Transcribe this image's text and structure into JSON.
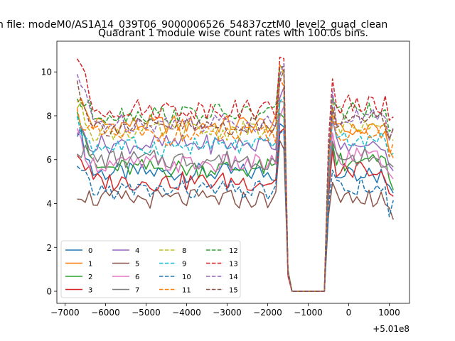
{
  "chart_data": {
    "type": "line",
    "suptitle": "n file: modeM0/AS1A14_039T06_9000006526_54837cztM0_level2_quad_clean",
    "title": "Quadrant 1 module wise count rates with 100.0s bins.",
    "xlabel": "",
    "ylabel": "",
    "offset_label": "+5.01e8",
    "xlim": [
      -7200,
      1500
    ],
    "ylim": [
      -0.55,
      11.4
    ],
    "xticks": [
      -7000,
      -6000,
      -5000,
      -4000,
      -3000,
      -2000,
      -1000,
      0,
      1000
    ],
    "xtick_labels": [
      "−7000",
      "−6000",
      "−5000",
      "−4000",
      "−3000",
      "−2000",
      "−1000",
      "0",
      "1000"
    ],
    "yticks": [
      0,
      2,
      4,
      6,
      8,
      10
    ],
    "ytick_labels": [
      "0",
      "2",
      "4",
      "6",
      "8",
      "10"
    ],
    "grid": false,
    "legend_position": "lower-left",
    "legend_columns": 4,
    "segments": {
      "first": {
        "start": -6700,
        "end": -1600,
        "step": 100
      },
      "gap_edge": [
        -1500,
        -1400
      ],
      "gap_zero": [
        -1400,
        -600
      ],
      "gap_rise": [
        -500
      ],
      "second": {
        "start": -400,
        "end": 1050,
        "step": 100
      }
    },
    "series": [
      {
        "name": "0",
        "color": "#1f77b4",
        "dash": "solid",
        "level": 5.4,
        "second_level": 5.3,
        "start": 7.5,
        "end": 4.8
      },
      {
        "name": "1",
        "color": "#ff7f0e",
        "dash": "solid",
        "level": 7.6,
        "second_level": 7.4,
        "start": 8.9,
        "end": 6.0
      },
      {
        "name": "2",
        "color": "#2ca02c",
        "dash": "solid",
        "level": 5.6,
        "second_level": 5.9,
        "start": 8.6,
        "end": 4.7
      },
      {
        "name": "3",
        "color": "#d62728",
        "dash": "solid",
        "level": 5.0,
        "second_level": 5.5,
        "start": 6.4,
        "end": 4.4
      },
      {
        "name": "4",
        "color": "#9467bd",
        "dash": "solid",
        "level": 6.7,
        "second_level": 6.8,
        "start": 7.4,
        "end": 5.6
      },
      {
        "name": "5",
        "color": "#8c564b",
        "dash": "solid",
        "level": 4.2,
        "second_level": 4.3,
        "start": 4.6,
        "end": 3.7
      },
      {
        "name": "6",
        "color": "#e377c2",
        "dash": "solid",
        "level": 5.8,
        "second_level": 6.1,
        "start": 7.0,
        "end": 5.3
      },
      {
        "name": "7",
        "color": "#7f7f7f",
        "dash": "solid",
        "level": 6.0,
        "second_level": 6.1,
        "start": 6.6,
        "end": 5.5
      },
      {
        "name": "8",
        "color": "#bcbd22",
        "dash": "dashed",
        "level": 7.3,
        "second_level": 7.5,
        "start": 8.5,
        "end": 6.7
      },
      {
        "name": "9",
        "color": "#17becf",
        "dash": "dashed",
        "level": 6.6,
        "second_level": 6.8,
        "start": 7.6,
        "end": 6.1
      },
      {
        "name": "10",
        "color": "#1f77b4",
        "dash": "dashed",
        "level": 4.6,
        "second_level": 4.8,
        "start": 5.5,
        "end": 3.8
      },
      {
        "name": "11",
        "color": "#ff7f0e",
        "dash": "dashed",
        "level": 7.1,
        "second_level": 7.3,
        "start": 8.1,
        "end": 6.5
      },
      {
        "name": "12",
        "color": "#2ca02c",
        "dash": "dashed",
        "level": 8.1,
        "second_level": 8.2,
        "start": 8.8,
        "end": 7.5
      },
      {
        "name": "13",
        "color": "#d62728",
        "dash": "dashed",
        "level": 8.3,
        "second_level": 8.5,
        "start": 10.8,
        "end": 7.6
      },
      {
        "name": "14",
        "color": "#9467bd",
        "dash": "dashed",
        "level": 7.7,
        "second_level": 7.9,
        "start": 9.9,
        "end": 7.3
      },
      {
        "name": "15",
        "color": "#8c564b",
        "dash": "dashed",
        "level": 7.5,
        "second_level": 7.7,
        "start": 9.5,
        "end": 7.2
      }
    ]
  }
}
